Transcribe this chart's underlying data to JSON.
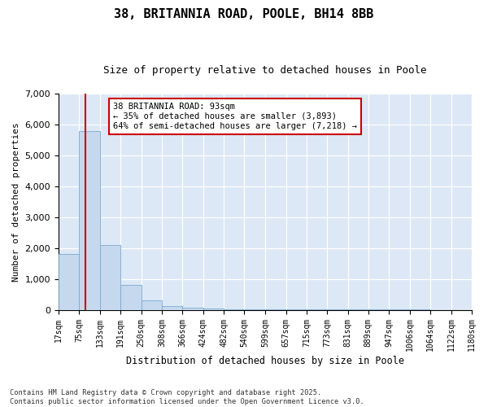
{
  "title": "38, BRITANNIA ROAD, POOLE, BH14 8BB",
  "subtitle": "Size of property relative to detached houses in Poole",
  "xlabel": "Distribution of detached houses by size in Poole",
  "ylabel": "Number of detached properties",
  "annotation_line1": "38 BRITANNIA ROAD: 93sqm",
  "annotation_line2": "← 35% of detached houses are smaller (3,893)",
  "annotation_line3": "64% of semi-detached houses are larger (7,218) →",
  "property_size": 93,
  "property_line_color": "#cc0000",
  "bar_color": "#c5d8ee",
  "bar_edge_color": "#7aaad0",
  "background_color": "#dce8f5",
  "footer_line1": "Contains HM Land Registry data © Crown copyright and database right 2025.",
  "footer_line2": "Contains public sector information licensed under the Open Government Licence v3.0.",
  "bins": [
    17,
    75,
    133,
    191,
    250,
    308,
    366,
    424,
    482,
    540,
    599,
    657,
    715,
    773,
    831,
    889,
    947,
    1006,
    1064,
    1122,
    1180
  ],
  "counts": [
    1800,
    5800,
    2100,
    800,
    300,
    130,
    65,
    40,
    28,
    20,
    15,
    12,
    10,
    8,
    7,
    5,
    4,
    3,
    2,
    2
  ],
  "ylim": [
    0,
    7000
  ],
  "yticks": [
    0,
    1000,
    2000,
    3000,
    4000,
    5000,
    6000,
    7000
  ]
}
